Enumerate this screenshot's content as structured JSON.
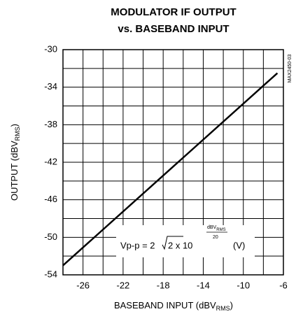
{
  "chart_data": {
    "type": "line",
    "title": [
      "MODULATOR IF OUTPUT",
      "vs. BASEBAND INPUT"
    ],
    "side_label": "MAX2450-03",
    "xlabel": [
      "BASEBAND INPUT (dBV",
      "RMS",
      ")"
    ],
    "ylabel": [
      "OUTPUT (dBV",
      "RMS",
      ")"
    ],
    "annotation": [
      "Vp-p = 2",
      "2 x 10",
      "dBV",
      "RMS",
      "20",
      "(V)"
    ],
    "x": [
      -28,
      -6.6
    ],
    "series": [
      {
        "name": "OUTPUT",
        "color": "#000000",
        "values": [
          -53,
          -32.5
        ]
      }
    ],
    "xlim": [
      -28,
      -6
    ],
    "xticks": [
      -26,
      -22,
      -18,
      -14,
      -10,
      -6
    ],
    "xminorticks": [
      -28,
      -24,
      -20,
      -16,
      -12,
      -8
    ],
    "ylim": [
      -54,
      -30
    ],
    "yticks": [
      -54,
      -50,
      -46,
      -42,
      -38,
      -34,
      -30
    ],
    "yminorticks": [
      -52,
      -48,
      -44,
      -40,
      -36,
      -32
    ],
    "grid": true
  }
}
